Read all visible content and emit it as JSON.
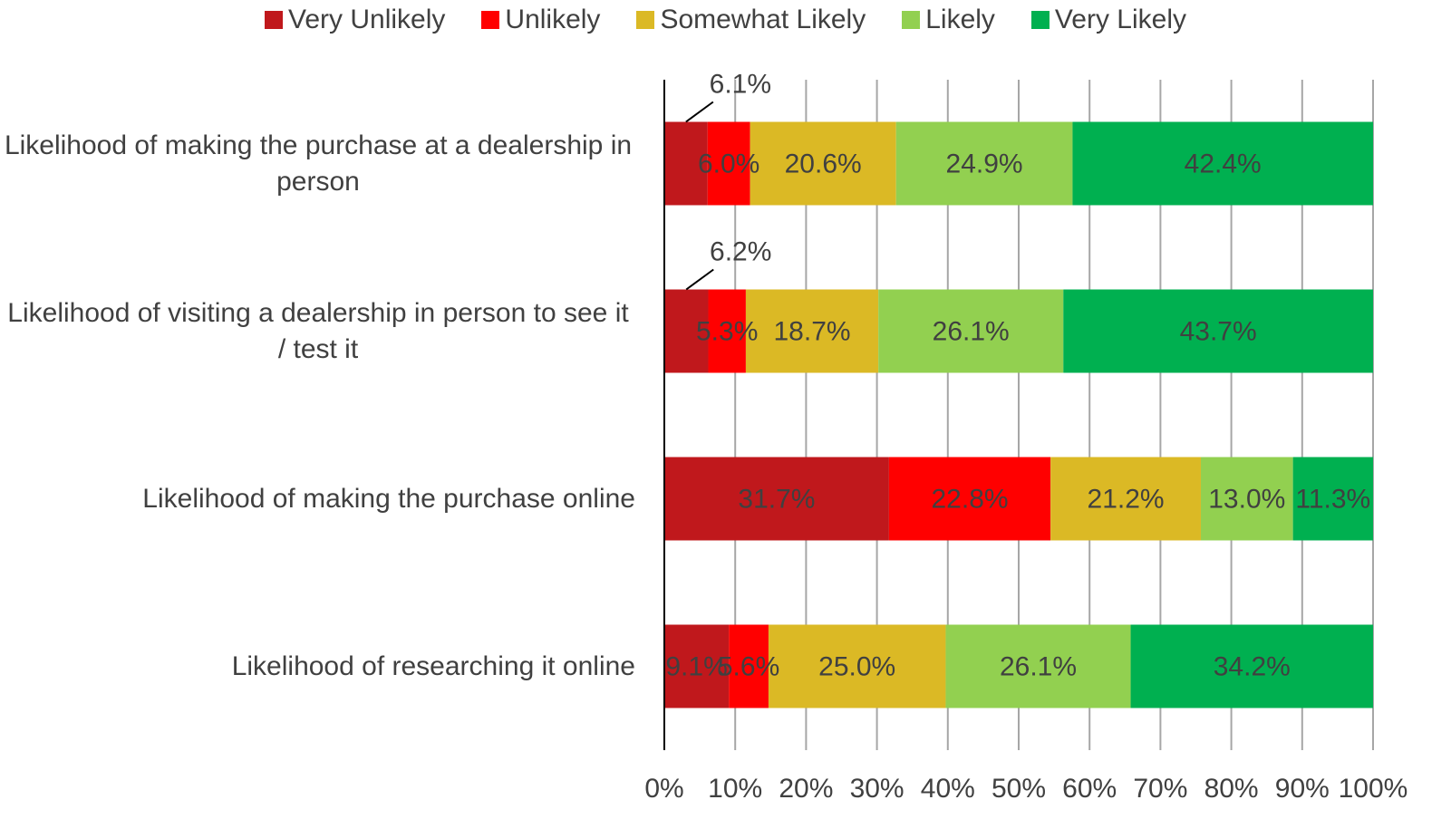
{
  "chart_data": {
    "type": "stacked_barh",
    "categories": [
      "Likelihood of making the purchase at a dealership in person",
      "Likelihood of visiting a dealership in person to see it / test it",
      "Likelihood of making the purchase online",
      "Likelihood of researching it online"
    ],
    "series": [
      {
        "name": "Very Unlikely",
        "color": "#c0181c",
        "values": [
          6.1,
          6.2,
          31.7,
          9.1
        ],
        "value_labels": [
          "6.1%",
          "6.2%",
          "31.7%",
          "9.1%"
        ]
      },
      {
        "name": "Unlikely",
        "color": "#ff0000",
        "values": [
          6.0,
          5.3,
          22.8,
          5.6
        ],
        "value_labels": [
          "6.0%",
          "5.3%",
          "22.8%",
          "5.6%"
        ]
      },
      {
        "name": "Somewhat Likely",
        "color": "#dbb925",
        "values": [
          20.6,
          18.7,
          21.2,
          25.0
        ],
        "value_labels": [
          "20.6%",
          "18.7%",
          "21.2%",
          "25.0%"
        ]
      },
      {
        "name": "Likely",
        "color": "#92d050",
        "values": [
          24.9,
          26.1,
          13.0,
          26.1
        ],
        "value_labels": [
          "24.9%",
          "26.1%",
          "13.0%",
          "26.1%"
        ]
      },
      {
        "name": "Very Likely",
        "color": "#00b050",
        "values": [
          42.4,
          43.7,
          11.3,
          34.2
        ],
        "value_labels": [
          "42.4%",
          "43.7%",
          "11.3%",
          "34.2%"
        ]
      }
    ],
    "xlim": [
      0,
      100
    ],
    "xticks": [
      {
        "value": 0,
        "label": "0%"
      },
      {
        "value": 10,
        "label": "10%"
      },
      {
        "value": 20,
        "label": "20%"
      },
      {
        "value": 30,
        "label": "30%"
      },
      {
        "value": 40,
        "label": "40%"
      },
      {
        "value": 50,
        "label": "50%"
      },
      {
        "value": 60,
        "label": "60%"
      },
      {
        "value": 70,
        "label": "70%"
      },
      {
        "value": 80,
        "label": "80%"
      },
      {
        "value": 90,
        "label": "90%"
      },
      {
        "value": 100,
        "label": "100%"
      }
    ],
    "grid": true,
    "legend": "top"
  }
}
